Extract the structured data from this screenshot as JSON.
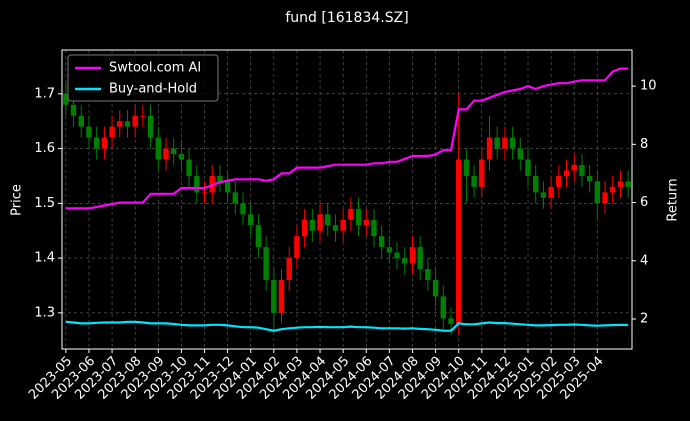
{
  "chart_data": {
    "type": "candlestick",
    "title": "fund [161834.SZ]",
    "ylabel": "Price",
    "y2label": "Return",
    "categories": [
      "2023-05",
      null,
      null,
      "2023-06",
      null,
      null,
      "2023-07",
      null,
      null,
      "2023-08",
      null,
      null,
      "2023-09",
      null,
      null,
      "2023-10",
      null,
      null,
      "2023-11",
      null,
      null,
      "2023-12",
      null,
      null,
      "2024-01",
      null,
      null,
      "2024-02",
      null,
      null,
      "2024-03",
      null,
      null,
      "2024-04",
      null,
      null,
      "2024-05",
      null,
      null,
      "2024-06",
      null,
      null,
      "2024-07",
      null,
      null,
      "2024-08",
      null,
      null,
      "2024-09",
      null,
      null,
      "2024-10",
      null,
      null,
      "2024-11",
      null,
      null,
      "2024-12",
      null,
      null,
      "2025-01",
      null,
      null,
      "2025-02",
      null,
      null,
      "2025-03",
      null,
      null,
      "2025-04",
      null,
      null,
      null,
      null
    ],
    "open": [
      1.7,
      1.68,
      1.66,
      1.64,
      1.62,
      1.6,
      1.62,
      1.64,
      1.65,
      1.64,
      1.66,
      1.66,
      1.62,
      1.58,
      1.6,
      1.59,
      1.58,
      1.55,
      1.52,
      1.52,
      1.55,
      1.54,
      1.52,
      1.5,
      1.48,
      1.46,
      1.42,
      1.36,
      1.3,
      1.36,
      1.4,
      1.44,
      1.47,
      1.45,
      1.48,
      1.46,
      1.45,
      1.47,
      1.49,
      1.46,
      1.47,
      1.44,
      1.42,
      1.41,
      1.4,
      1.39,
      1.42,
      1.38,
      1.36,
      1.33,
      1.29,
      1.28,
      1.58,
      1.55,
      1.53,
      1.58,
      1.62,
      1.6,
      1.62,
      1.6,
      1.58,
      1.55,
      1.52,
      1.51,
      1.53,
      1.55,
      1.56,
      1.57,
      1.55,
      1.54,
      1.5,
      1.52,
      1.53,
      1.54
    ],
    "high": [
      1.72,
      1.7,
      1.68,
      1.66,
      1.64,
      1.64,
      1.66,
      1.67,
      1.67,
      1.68,
      1.68,
      1.68,
      1.64,
      1.62,
      1.62,
      1.61,
      1.6,
      1.57,
      1.54,
      1.57,
      1.57,
      1.56,
      1.54,
      1.52,
      1.5,
      1.48,
      1.44,
      1.38,
      1.38,
      1.42,
      1.46,
      1.49,
      1.49,
      1.5,
      1.5,
      1.48,
      1.49,
      1.51,
      1.51,
      1.49,
      1.49,
      1.46,
      1.44,
      1.43,
      1.42,
      1.44,
      1.44,
      1.4,
      1.38,
      1.35,
      1.31,
      1.7,
      1.6,
      1.57,
      1.6,
      1.66,
      1.64,
      1.64,
      1.64,
      1.62,
      1.6,
      1.57,
      1.54,
      1.55,
      1.57,
      1.58,
      1.59,
      1.59,
      1.57,
      1.56,
      1.54,
      1.55,
      1.56,
      1.56
    ],
    "low": [
      1.66,
      1.64,
      1.62,
      1.6,
      1.58,
      1.58,
      1.6,
      1.62,
      1.62,
      1.62,
      1.64,
      1.6,
      1.56,
      1.56,
      1.57,
      1.56,
      1.53,
      1.5,
      1.5,
      1.5,
      1.52,
      1.5,
      1.48,
      1.46,
      1.44,
      1.4,
      1.34,
      1.27,
      1.28,
      1.34,
      1.38,
      1.42,
      1.43,
      1.43,
      1.44,
      1.43,
      1.43,
      1.45,
      1.44,
      1.44,
      1.42,
      1.4,
      1.39,
      1.38,
      1.37,
      1.37,
      1.36,
      1.34,
      1.31,
      1.27,
      1.26,
      1.26,
      1.5,
      1.51,
      1.51,
      1.56,
      1.58,
      1.58,
      1.58,
      1.56,
      1.53,
      1.5,
      1.49,
      1.49,
      1.51,
      1.53,
      1.54,
      1.53,
      1.52,
      1.47,
      1.48,
      1.5,
      1.51,
      1.51
    ],
    "close": [
      1.68,
      1.66,
      1.64,
      1.62,
      1.6,
      1.62,
      1.64,
      1.65,
      1.64,
      1.66,
      1.66,
      1.62,
      1.58,
      1.6,
      1.59,
      1.58,
      1.55,
      1.52,
      1.52,
      1.55,
      1.54,
      1.52,
      1.5,
      1.48,
      1.46,
      1.42,
      1.36,
      1.3,
      1.36,
      1.4,
      1.44,
      1.47,
      1.45,
      1.48,
      1.46,
      1.45,
      1.47,
      1.49,
      1.46,
      1.47,
      1.44,
      1.42,
      1.41,
      1.4,
      1.39,
      1.42,
      1.38,
      1.36,
      1.33,
      1.29,
      1.28,
      1.58,
      1.55,
      1.53,
      1.58,
      1.62,
      1.6,
      1.62,
      1.6,
      1.58,
      1.55,
      1.52,
      1.51,
      1.53,
      1.55,
      1.56,
      1.57,
      1.55,
      1.54,
      1.5,
      1.52,
      1.53,
      1.54,
      1.53
    ],
    "up_color": "#ff0000",
    "down_color": "#008000",
    "series": [
      {
        "name": "Swtool.com AI",
        "color": "#ff00ff",
        "axis": "y2",
        "values": [
          5.8,
          5.8,
          5.8,
          5.8,
          5.85,
          5.9,
          5.95,
          6.0,
          6.0,
          6.0,
          6.0,
          6.3,
          6.3,
          6.3,
          6.3,
          6.5,
          6.5,
          6.5,
          6.5,
          6.6,
          6.7,
          6.75,
          6.8,
          6.8,
          6.8,
          6.8,
          6.75,
          6.8,
          7.0,
          7.0,
          7.2,
          7.2,
          7.2,
          7.2,
          7.25,
          7.3,
          7.3,
          7.3,
          7.3,
          7.3,
          7.35,
          7.35,
          7.4,
          7.4,
          7.5,
          7.6,
          7.6,
          7.6,
          7.65,
          7.8,
          7.8,
          9.2,
          9.2,
          9.5,
          9.5,
          9.6,
          9.7,
          9.8,
          9.85,
          9.9,
          10.0,
          9.9,
          10.0,
          10.05,
          10.1,
          10.1,
          10.15,
          10.2,
          10.2,
          10.2,
          10.2,
          10.5,
          10.6,
          10.6
        ]
      },
      {
        "name": "Buy-and-Hold",
        "color": "#00e5ff",
        "axis": "y2",
        "values": [
          1.9,
          1.88,
          1.85,
          1.85,
          1.87,
          1.88,
          1.88,
          1.88,
          1.9,
          1.9,
          1.88,
          1.85,
          1.85,
          1.85,
          1.83,
          1.8,
          1.78,
          1.78,
          1.78,
          1.8,
          1.8,
          1.78,
          1.75,
          1.72,
          1.72,
          1.7,
          1.65,
          1.6,
          1.65,
          1.68,
          1.7,
          1.72,
          1.72,
          1.73,
          1.72,
          1.72,
          1.72,
          1.74,
          1.72,
          1.72,
          1.7,
          1.68,
          1.68,
          1.68,
          1.67,
          1.68,
          1.66,
          1.65,
          1.63,
          1.6,
          1.6,
          1.85,
          1.82,
          1.82,
          1.85,
          1.88,
          1.86,
          1.86,
          1.84,
          1.82,
          1.8,
          1.78,
          1.78,
          1.79,
          1.8,
          1.8,
          1.81,
          1.8,
          1.78,
          1.77,
          1.78,
          1.79,
          1.8,
          1.79
        ]
      }
    ],
    "ylim": [
      1.234,
      1.78
    ],
    "yticks": [
      1.3,
      1.4,
      1.5,
      1.6,
      1.7
    ],
    "y2lim": [
      0.97,
      11.24
    ],
    "y2ticks": [
      2,
      4,
      6,
      8,
      10
    ],
    "grid": true,
    "legend": "upper left"
  }
}
